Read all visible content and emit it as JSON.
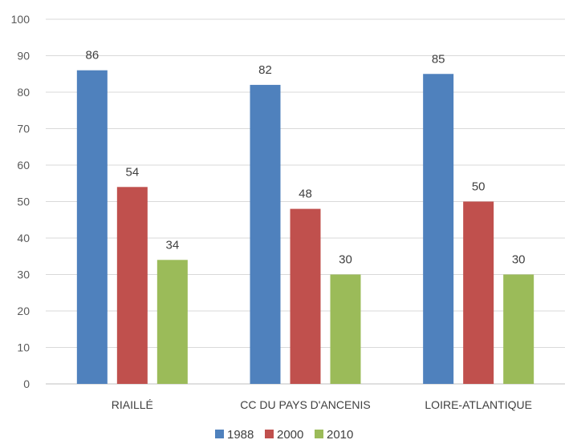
{
  "chart_data": {
    "type": "bar",
    "title": "",
    "xlabel": "",
    "ylabel": "",
    "categories": [
      "RIAILLÉ",
      "CC DU PAYS D'ANCENIS",
      "LOIRE-ATLANTIQUE"
    ],
    "series": [
      {
        "name": "1988",
        "values": [
          86,
          82,
          85
        ],
        "labels": [
          "86",
          "82",
          "85"
        ],
        "color": "#4f81bd"
      },
      {
        "name": "2000",
        "values": [
          54,
          48,
          50
        ],
        "labels": [
          "54",
          "48",
          "50"
        ],
        "color": "#c0504d"
      },
      {
        "name": "2010",
        "values": [
          34,
          30,
          30
        ],
        "labels": [
          "34",
          "30",
          "30"
        ],
        "color": "#9bbb59"
      }
    ],
    "ylim": [
      0,
      100
    ],
    "yticks": [
      "0",
      "10",
      "20",
      "30",
      "40",
      "50",
      "60",
      "70",
      "80",
      "90",
      "100"
    ],
    "grid": true,
    "legend": "bottom"
  }
}
